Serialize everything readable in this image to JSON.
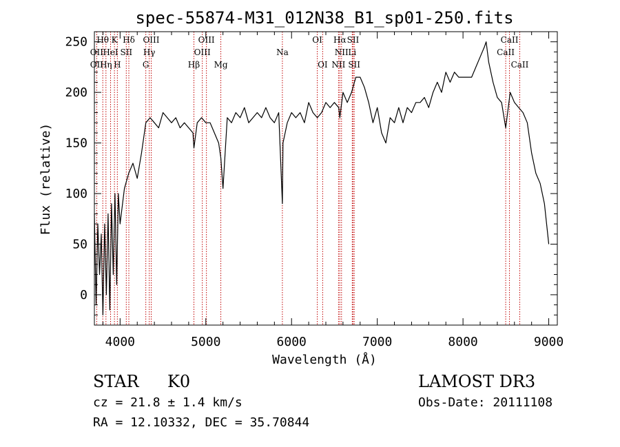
{
  "chart_data": {
    "type": "line",
    "title": "spec-55874-M31_012N38_B1_sp01-250.fits",
    "xlabel": "Wavelength (Å)",
    "ylabel": "Flux (relative)",
    "xlim": [
      3700,
      9100
    ],
    "ylim": [
      -30,
      260
    ],
    "xticks": [
      4000,
      5000,
      6000,
      7000,
      8000,
      9000
    ],
    "yticks": [
      0,
      50,
      100,
      150,
      200,
      250
    ],
    "series": [
      {
        "name": "spectrum",
        "x": [
          3700,
          3720,
          3740,
          3760,
          3780,
          3800,
          3820,
          3840,
          3860,
          3880,
          3900,
          3920,
          3940,
          3960,
          3980,
          4000,
          4050,
          4100,
          4150,
          4200,
          4250,
          4300,
          4350,
          4400,
          4450,
          4500,
          4550,
          4600,
          4650,
          4700,
          4750,
          4800,
          4850,
          4861,
          4900,
          4950,
          5000,
          5050,
          5100,
          5150,
          5175,
          5200,
          5250,
          5300,
          5350,
          5400,
          5450,
          5500,
          5550,
          5600,
          5650,
          5700,
          5750,
          5800,
          5850,
          5893,
          5900,
          5950,
          6000,
          6050,
          6100,
          6150,
          6200,
          6250,
          6300,
          6350,
          6400,
          6450,
          6500,
          6550,
          6563,
          6600,
          6650,
          6700,
          6750,
          6800,
          6850,
          6900,
          6950,
          7000,
          7050,
          7100,
          7150,
          7200,
          7250,
          7300,
          7350,
          7400,
          7450,
          7500,
          7550,
          7600,
          7650,
          7700,
          7750,
          7800,
          7850,
          7900,
          7950,
          8000,
          8050,
          8100,
          8150,
          8200,
          8250,
          8270,
          8300,
          8350,
          8400,
          8450,
          8498,
          8550,
          8600,
          8650,
          8700,
          8750,
          8800,
          8850,
          8900,
          8950,
          9000
        ],
        "y": [
          80,
          -10,
          70,
          20,
          60,
          -20,
          70,
          0,
          80,
          -15,
          90,
          20,
          100,
          10,
          100,
          70,
          105,
          120,
          130,
          115,
          140,
          170,
          175,
          170,
          165,
          180,
          175,
          170,
          175,
          165,
          170,
          165,
          160,
          145,
          170,
          175,
          170,
          170,
          160,
          150,
          135,
          105,
          175,
          170,
          180,
          175,
          185,
          170,
          175,
          180,
          175,
          185,
          175,
          170,
          180,
          90,
          150,
          170,
          180,
          175,
          180,
          170,
          190,
          180,
          175,
          180,
          190,
          185,
          190,
          185,
          175,
          200,
          190,
          200,
          215,
          215,
          205,
          190,
          170,
          185,
          160,
          150,
          175,
          170,
          185,
          170,
          185,
          180,
          190,
          190,
          195,
          185,
          200,
          210,
          200,
          220,
          210,
          220,
          215,
          215,
          215,
          215,
          225,
          235,
          245,
          250,
          230,
          210,
          195,
          190,
          165,
          200,
          190,
          185,
          180,
          170,
          140,
          120,
          110,
          90,
          50
        ]
      }
    ],
    "lines_top": [
      {
        "label": "Hθ",
        "wl": 3798
      },
      {
        "label": "K",
        "wl": 3934
      },
      {
        "label": "Hδ",
        "wl": 4102
      },
      {
        "label": "OIII",
        "wl": 4363
      },
      {
        "label": "OIII",
        "wl": 5007
      },
      {
        "label": "OI",
        "wl": 6300
      },
      {
        "label": "Hα",
        "wl": 6563
      },
      {
        "label": "SII",
        "wl": 6717
      },
      {
        "label": "CaII",
        "wl": 8542
      }
    ],
    "lines_mid": [
      {
        "label": "OII",
        "wl": 3727
      },
      {
        "label": "HeI",
        "wl": 3889
      },
      {
        "label": "SII",
        "wl": 4072
      },
      {
        "label": "Hγ",
        "wl": 4340
      },
      {
        "label": "OIII",
        "wl": 4959
      },
      {
        "label": "Na",
        "wl": 5893
      },
      {
        "label": "NII",
        "wl": 6583
      },
      {
        "label": "Li",
        "wl": 6708
      },
      {
        "label": "CaII",
        "wl": 8498
      }
    ],
    "lines_bot": [
      {
        "label": "OII",
        "wl": 3727
      },
      {
        "label": "Hη",
        "wl": 3835
      },
      {
        "label": "H",
        "wl": 3968
      },
      {
        "label": "G",
        "wl": 4300
      },
      {
        "label": "Hβ",
        "wl": 4861
      },
      {
        "label": "Mg",
        "wl": 5175
      },
      {
        "label": "OI",
        "wl": 6363
      },
      {
        "label": "NII",
        "wl": 6548
      },
      {
        "label": "SII",
        "wl": 6731
      },
      {
        "label": "CaII",
        "wl": 8662
      }
    ],
    "marker_color": "#c00000"
  },
  "info": {
    "class": "STAR",
    "subclass": "K0",
    "survey": "LAMOST DR3",
    "cz": "cz = 21.8 ± 1.4 km/s",
    "obs_date": "Obs-Date: 20111108",
    "coords": "RA =  12.10332, DEC =  35.70844"
  }
}
